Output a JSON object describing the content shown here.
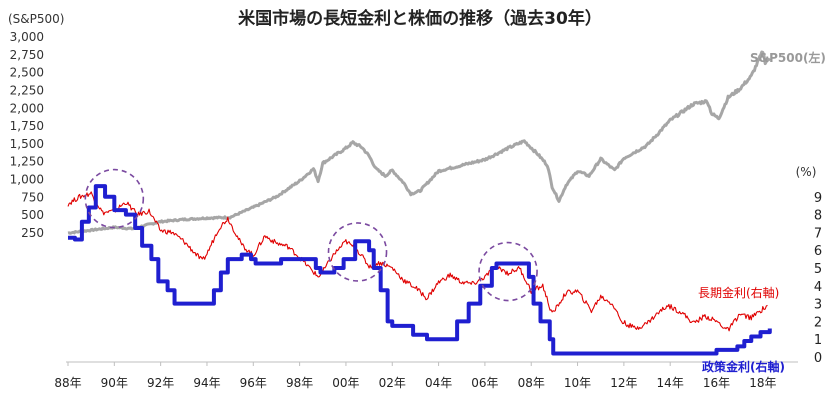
{
  "chart_data": {
    "type": "line",
    "title": "米国市場の長短金利と株価の推移（過去30年）",
    "left_axis": {
      "unit_label": "(S&P500)",
      "range": [
        0,
        3000
      ],
      "ticks": [
        "3,000",
        "2,750",
        "2,500",
        "2,250",
        "2,000",
        "1,750",
        "1,500",
        "1,250",
        "1,000",
        "750",
        "500",
        "250"
      ]
    },
    "right_axis": {
      "unit_label": "(%)",
      "range": [
        0,
        10
      ],
      "ticks": [
        "9",
        "8",
        "7",
        "6",
        "5",
        "4",
        "3",
        "2",
        "1",
        "0"
      ]
    },
    "x_axis": {
      "range": [
        1988.0,
        2019.0
      ],
      "ticks": [
        "88年",
        "90年",
        "92年",
        "94年",
        "96年",
        "98年",
        "00年",
        "02年",
        "04年",
        "06年",
        "08年",
        "10年",
        "12年",
        "14年",
        "16年",
        "18年"
      ]
    },
    "series": [
      {
        "name": "S&P500(左)",
        "axis": "left",
        "color": "#a6a6a6",
        "points": [
          [
            1988.0,
            250
          ],
          [
            1989.0,
            290
          ],
          [
            1990.0,
            330
          ],
          [
            1990.8,
            310
          ],
          [
            1991.0,
            330
          ],
          [
            1992.0,
            410
          ],
          [
            1993.0,
            440
          ],
          [
            1994.0,
            460
          ],
          [
            1995.0,
            470
          ],
          [
            1996.0,
            610
          ],
          [
            1997.0,
            760
          ],
          [
            1998.0,
            980
          ],
          [
            1998.6,
            1150
          ],
          [
            1998.8,
            980
          ],
          [
            1999.0,
            1230
          ],
          [
            2000.0,
            1440
          ],
          [
            2000.3,
            1520
          ],
          [
            2000.7,
            1450
          ],
          [
            2001.0,
            1330
          ],
          [
            2001.3,
            1150
          ],
          [
            2001.7,
            1050
          ],
          [
            2002.0,
            1130
          ],
          [
            2002.5,
            950
          ],
          [
            2002.8,
            800
          ],
          [
            2003.2,
            840
          ],
          [
            2004.0,
            1120
          ],
          [
            2005.0,
            1200
          ],
          [
            2006.0,
            1280
          ],
          [
            2007.0,
            1440
          ],
          [
            2007.7,
            1540
          ],
          [
            2008.3,
            1350
          ],
          [
            2008.7,
            1200
          ],
          [
            2008.9,
            900
          ],
          [
            2009.2,
            700
          ],
          [
            2009.5,
            920
          ],
          [
            2010.0,
            1120
          ],
          [
            2010.5,
            1050
          ],
          [
            2011.0,
            1290
          ],
          [
            2011.6,
            1130
          ],
          [
            2012.0,
            1300
          ],
          [
            2013.0,
            1480
          ],
          [
            2014.0,
            1830
          ],
          [
            2015.0,
            2060
          ],
          [
            2015.6,
            2100
          ],
          [
            2015.8,
            1920
          ],
          [
            2016.1,
            1860
          ],
          [
            2016.5,
            2150
          ],
          [
            2017.0,
            2270
          ],
          [
            2017.5,
            2450
          ],
          [
            2018.0,
            2800
          ],
          [
            2018.1,
            2650
          ],
          [
            2018.3,
            2700
          ]
        ]
      },
      {
        "name": "長期金利(右軸)",
        "axis": "right",
        "color": "#e00000",
        "points": [
          [
            1988.0,
            8.6
          ],
          [
            1988.5,
            9.0
          ],
          [
            1989.0,
            9.2
          ],
          [
            1989.5,
            8.1
          ],
          [
            1990.0,
            8.2
          ],
          [
            1990.5,
            8.7
          ],
          [
            1991.0,
            8.0
          ],
          [
            1991.5,
            8.2
          ],
          [
            1992.0,
            7.1
          ],
          [
            1992.5,
            7.0
          ],
          [
            1993.0,
            6.5
          ],
          [
            1993.8,
            5.4
          ],
          [
            1994.0,
            5.8
          ],
          [
            1994.5,
            7.2
          ],
          [
            1994.9,
            7.8
          ],
          [
            1995.5,
            6.3
          ],
          [
            1996.0,
            5.7
          ],
          [
            1996.5,
            6.8
          ],
          [
            1997.0,
            6.4
          ],
          [
            1997.5,
            6.2
          ],
          [
            1998.0,
            5.6
          ],
          [
            1998.8,
            4.5
          ],
          [
            1999.0,
            4.8
          ],
          [
            1999.5,
            5.8
          ],
          [
            2000.0,
            6.5
          ],
          [
            2000.5,
            6.0
          ],
          [
            2001.0,
            5.1
          ],
          [
            2001.5,
            5.3
          ],
          [
            2002.0,
            5.0
          ],
          [
            2002.5,
            4.3
          ],
          [
            2003.0,
            3.9
          ],
          [
            2003.5,
            3.3
          ],
          [
            2004.0,
            4.2
          ],
          [
            2004.5,
            4.6
          ],
          [
            2005.0,
            4.2
          ],
          [
            2005.5,
            4.1
          ],
          [
            2006.0,
            4.5
          ],
          [
            2006.5,
            5.1
          ],
          [
            2007.0,
            4.7
          ],
          [
            2007.5,
            5.0
          ],
          [
            2008.0,
            3.7
          ],
          [
            2008.5,
            4.0
          ],
          [
            2008.9,
            2.4
          ],
          [
            2009.5,
            3.6
          ],
          [
            2010.0,
            3.7
          ],
          [
            2010.6,
            2.6
          ],
          [
            2011.0,
            3.4
          ],
          [
            2011.5,
            3.0
          ],
          [
            2011.9,
            2.0
          ],
          [
            2012.5,
            1.6
          ],
          [
            2013.0,
            1.9
          ],
          [
            2013.5,
            2.5
          ],
          [
            2013.9,
            2.9
          ],
          [
            2014.5,
            2.5
          ],
          [
            2015.0,
            1.9
          ],
          [
            2015.5,
            2.3
          ],
          [
            2016.0,
            2.0
          ],
          [
            2016.5,
            1.5
          ],
          [
            2017.0,
            2.4
          ],
          [
            2017.5,
            2.2
          ],
          [
            2018.0,
            2.7
          ],
          [
            2018.2,
            2.9
          ]
        ]
      },
      {
        "name": "政策金利(右軸)",
        "axis": "right",
        "color": "#1f1fd0",
        "points": [
          [
            1988.0,
            6.7
          ],
          [
            1988.3,
            6.6
          ],
          [
            1988.6,
            7.6
          ],
          [
            1988.9,
            8.4
          ],
          [
            1989.2,
            9.6
          ],
          [
            1989.6,
            9.0
          ],
          [
            1990.0,
            8.25
          ],
          [
            1990.5,
            8.0
          ],
          [
            1990.9,
            7.25
          ],
          [
            1991.2,
            6.25
          ],
          [
            1991.6,
            5.5
          ],
          [
            1991.9,
            4.25
          ],
          [
            1992.3,
            3.75
          ],
          [
            1992.6,
            3.0
          ],
          [
            1993.0,
            3.0
          ],
          [
            1994.0,
            3.0
          ],
          [
            1994.3,
            3.75
          ],
          [
            1994.6,
            4.75
          ],
          [
            1994.9,
            5.5
          ],
          [
            1995.5,
            5.75
          ],
          [
            1995.9,
            5.5
          ],
          [
            1996.1,
            5.25
          ],
          [
            1997.2,
            5.5
          ],
          [
            1998.7,
            5.0
          ],
          [
            1998.9,
            4.75
          ],
          [
            1999.5,
            5.0
          ],
          [
            1999.9,
            5.5
          ],
          [
            2000.4,
            6.5
          ],
          [
            2001.0,
            6.0
          ],
          [
            2001.2,
            5.0
          ],
          [
            2001.5,
            3.75
          ],
          [
            2001.8,
            2.0
          ],
          [
            2002.0,
            1.75
          ],
          [
            2002.9,
            1.25
          ],
          [
            2003.5,
            1.0
          ],
          [
            2004.5,
            1.0
          ],
          [
            2004.8,
            2.0
          ],
          [
            2005.3,
            3.0
          ],
          [
            2005.8,
            4.0
          ],
          [
            2006.3,
            5.0
          ],
          [
            2006.5,
            5.25
          ],
          [
            2007.6,
            5.25
          ],
          [
            2007.9,
            4.5
          ],
          [
            2008.1,
            3.0
          ],
          [
            2008.4,
            2.0
          ],
          [
            2008.8,
            1.0
          ],
          [
            2008.95,
            0.2
          ],
          [
            2015.9,
            0.2
          ],
          [
            2016.0,
            0.4
          ],
          [
            2016.9,
            0.6
          ],
          [
            2017.2,
            0.9
          ],
          [
            2017.5,
            1.15
          ],
          [
            2017.9,
            1.4
          ],
          [
            2018.3,
            1.6
          ]
        ]
      }
    ],
    "annotations": [
      {
        "type": "circle",
        "x": 1990.0,
        "y_right": 8.9
      },
      {
        "type": "circle",
        "x": 2000.5,
        "y_right": 5.9
      },
      {
        "type": "circle",
        "x": 2007.0,
        "y_right": 4.8
      }
    ],
    "grid": "none",
    "legend": "inline labels at right"
  }
}
